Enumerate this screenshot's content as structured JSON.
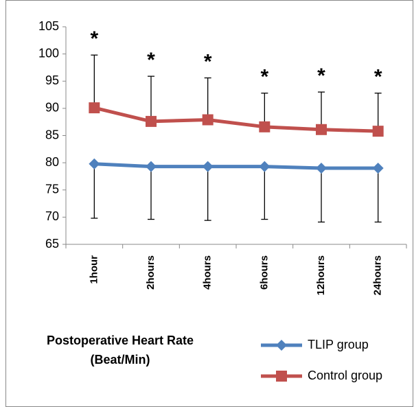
{
  "chart_data": {
    "type": "line",
    "title": "Postoperative Heart Rate (Beat/Min)",
    "categories": [
      "1hour",
      "2hours",
      "4hours",
      "6hours",
      "12hours",
      "24hours"
    ],
    "series": [
      {
        "name": "TLIP group",
        "color": "#4f81bd",
        "marker": "diamond",
        "error_direction": "down",
        "values": [
          79.8,
          79.3,
          79.3,
          79.3,
          79.0,
          79.0
        ],
        "errors": [
          10.0,
          9.7,
          9.9,
          9.7,
          9.9,
          9.9
        ]
      },
      {
        "name": "Control group",
        "color": "#c0504d",
        "marker": "square",
        "error_direction": "up",
        "values": [
          90.1,
          87.6,
          87.9,
          86.6,
          86.1,
          85.8
        ],
        "errors": [
          9.7,
          8.3,
          7.7,
          6.2,
          6.9,
          7.0
        ]
      }
    ],
    "annotations": [
      "*",
      "*",
      "*",
      "*",
      "*",
      "*"
    ],
    "ylim": [
      65,
      105
    ],
    "yticks": [
      65,
      70,
      75,
      80,
      85,
      90,
      95,
      100,
      105
    ],
    "grid": false
  }
}
